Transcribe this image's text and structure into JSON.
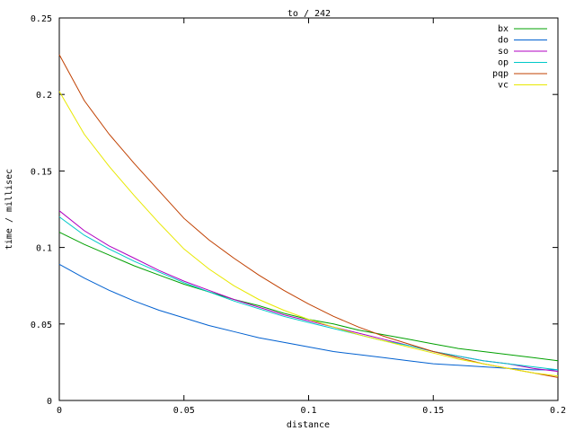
{
  "chart_data": {
    "type": "line",
    "title": "to / 242",
    "xlabel": "distance",
    "ylabel": "time / millisec",
    "xlim": [
      0,
      0.2
    ],
    "ylim": [
      0,
      0.25
    ],
    "xticks": [
      "0",
      "0.05",
      "0.1",
      "0.15",
      "0.2"
    ],
    "yticks": [
      "0",
      "0.05",
      "0.1",
      "0.15",
      "0.2",
      "0.25"
    ],
    "grid": false,
    "legend_position": "top-right",
    "x": [
      0,
      0.01,
      0.02,
      0.03,
      0.04,
      0.05,
      0.06,
      0.07,
      0.08,
      0.09,
      0.1,
      0.11,
      0.12,
      0.13,
      0.14,
      0.15,
      0.16,
      0.17,
      0.18,
      0.19,
      0.2
    ],
    "series": [
      {
        "name": "bx",
        "color": "#00a000",
        "values": [
          0.11,
          0.102,
          0.095,
          0.088,
          0.082,
          0.076,
          0.071,
          0.066,
          0.062,
          0.057,
          0.053,
          0.05,
          0.046,
          0.043,
          0.04,
          0.037,
          0.034,
          0.032,
          0.03,
          0.028,
          0.026
        ]
      },
      {
        "name": "do",
        "color": "#0060d0",
        "values": [
          0.089,
          0.08,
          0.072,
          0.065,
          0.059,
          0.054,
          0.049,
          0.045,
          0.041,
          0.038,
          0.035,
          0.032,
          0.03,
          0.028,
          0.026,
          0.024,
          0.023,
          0.022,
          0.021,
          0.02,
          0.02
        ]
      },
      {
        "name": "so",
        "color": "#b000c0",
        "values": [
          0.124,
          0.111,
          0.101,
          0.093,
          0.085,
          0.078,
          0.072,
          0.066,
          0.061,
          0.056,
          0.052,
          0.048,
          0.044,
          0.04,
          0.036,
          0.032,
          0.029,
          0.026,
          0.024,
          0.021,
          0.019
        ]
      },
      {
        "name": "op",
        "color": "#00c8c8",
        "values": [
          0.12,
          0.108,
          0.099,
          0.091,
          0.084,
          0.077,
          0.071,
          0.065,
          0.06,
          0.055,
          0.051,
          0.047,
          0.043,
          0.039,
          0.036,
          0.032,
          0.029,
          0.026,
          0.024,
          0.022,
          0.02
        ]
      },
      {
        "name": "pqp",
        "color": "#c04000",
        "values": [
          0.226,
          0.196,
          0.174,
          0.155,
          0.137,
          0.119,
          0.105,
          0.093,
          0.082,
          0.072,
          0.063,
          0.055,
          0.048,
          0.042,
          0.037,
          0.032,
          0.028,
          0.024,
          0.021,
          0.018,
          0.015
        ]
      },
      {
        "name": "vc",
        "color": "#e8e800",
        "values": [
          0.202,
          0.174,
          0.153,
          0.134,
          0.116,
          0.099,
          0.086,
          0.075,
          0.066,
          0.059,
          0.053,
          0.048,
          0.043,
          0.039,
          0.035,
          0.031,
          0.027,
          0.024,
          0.021,
          0.018,
          0.016
        ]
      }
    ]
  }
}
